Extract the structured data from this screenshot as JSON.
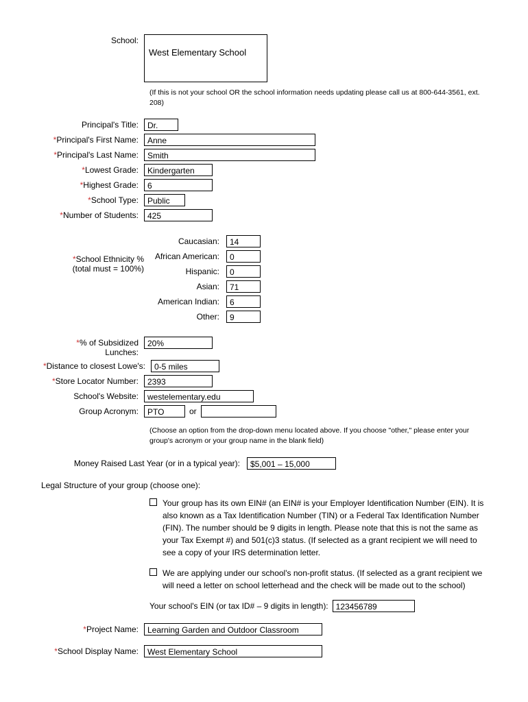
{
  "school": {
    "label": "School:",
    "value": "West Elementary School",
    "note": "(If this is not your school OR the school information needs updating please call us at 800-644-3561, ext. 208)"
  },
  "principal_title": {
    "label": "Principal's Title:",
    "value": "Dr."
  },
  "principal_first": {
    "label": "Principal's First Name:",
    "value": "Anne"
  },
  "principal_last": {
    "label": "Principal's Last Name:",
    "value": "Smith"
  },
  "lowest_grade": {
    "label": "Lowest Grade:",
    "value": "Kindergarten"
  },
  "highest_grade": {
    "label": "Highest Grade:",
    "value": "6"
  },
  "school_type": {
    "label": "School Type:",
    "value": "Public"
  },
  "num_students": {
    "label": "Number of Students:",
    "value": "425"
  },
  "ethnicity": {
    "group_label1": "School Ethnicity %",
    "group_label2": "(total must = 100%)",
    "rows": [
      {
        "label": "Caucasian:",
        "value": "14"
      },
      {
        "label": "African American:",
        "value": "0"
      },
      {
        "label": "Hispanic:",
        "value": "0"
      },
      {
        "label": "Asian:",
        "value": "71"
      },
      {
        "label": "American Indian:",
        "value": "6"
      },
      {
        "label": "Other:",
        "value": "9"
      }
    ]
  },
  "subsidized": {
    "label": "% of Subsidized Lunches:",
    "value": "20%"
  },
  "distance": {
    "label": "Distance to closest Lowe's:",
    "value": "0-5 miles"
  },
  "store_locator": {
    "label": "Store Locator Number:",
    "value": "2393"
  },
  "website": {
    "label": "School's Website:",
    "value": "westelementary.edu"
  },
  "acronym": {
    "label": "Group Acronym:",
    "value": "PTO",
    "or": "or",
    "other_value": ""
  },
  "acronym_note": "(Choose an option from the drop-down menu located above. If you choose \"other,\" please enter your group's acronym or your group name in the blank field)",
  "money_raised": {
    "label": "Money Raised Last Year (or in a typical year):",
    "value": "$5,001 – 15,000"
  },
  "legal_title": "Legal Structure of your group (choose one):",
  "legal_opt1": "Your group has its own EIN# (an EIN# is your Employer Identification Number (EIN). It is also known as a Tax Identification Number (TIN) or a Federal Tax Identification Number (FIN). The number should be 9 digits in length. Please note that this is not the same as your Tax Exempt #) and 501(c)3 status. (If selected as a grant recipient we will need to see a copy of your IRS determination letter.",
  "legal_opt2": "We are applying under our school's non-profit status. (If selected as a grant recipient we will need a letter on school letterhead and the check will be made out to the school)",
  "ein": {
    "label": "Your school's EIN (or tax ID# – 9 digits in length):",
    "value": "123456789"
  },
  "project_name": {
    "label": "Project Name:",
    "value": "Learning Garden and Outdoor Classroom"
  },
  "display_name": {
    "label": "School Display Name:",
    "value": "West Elementary School"
  }
}
